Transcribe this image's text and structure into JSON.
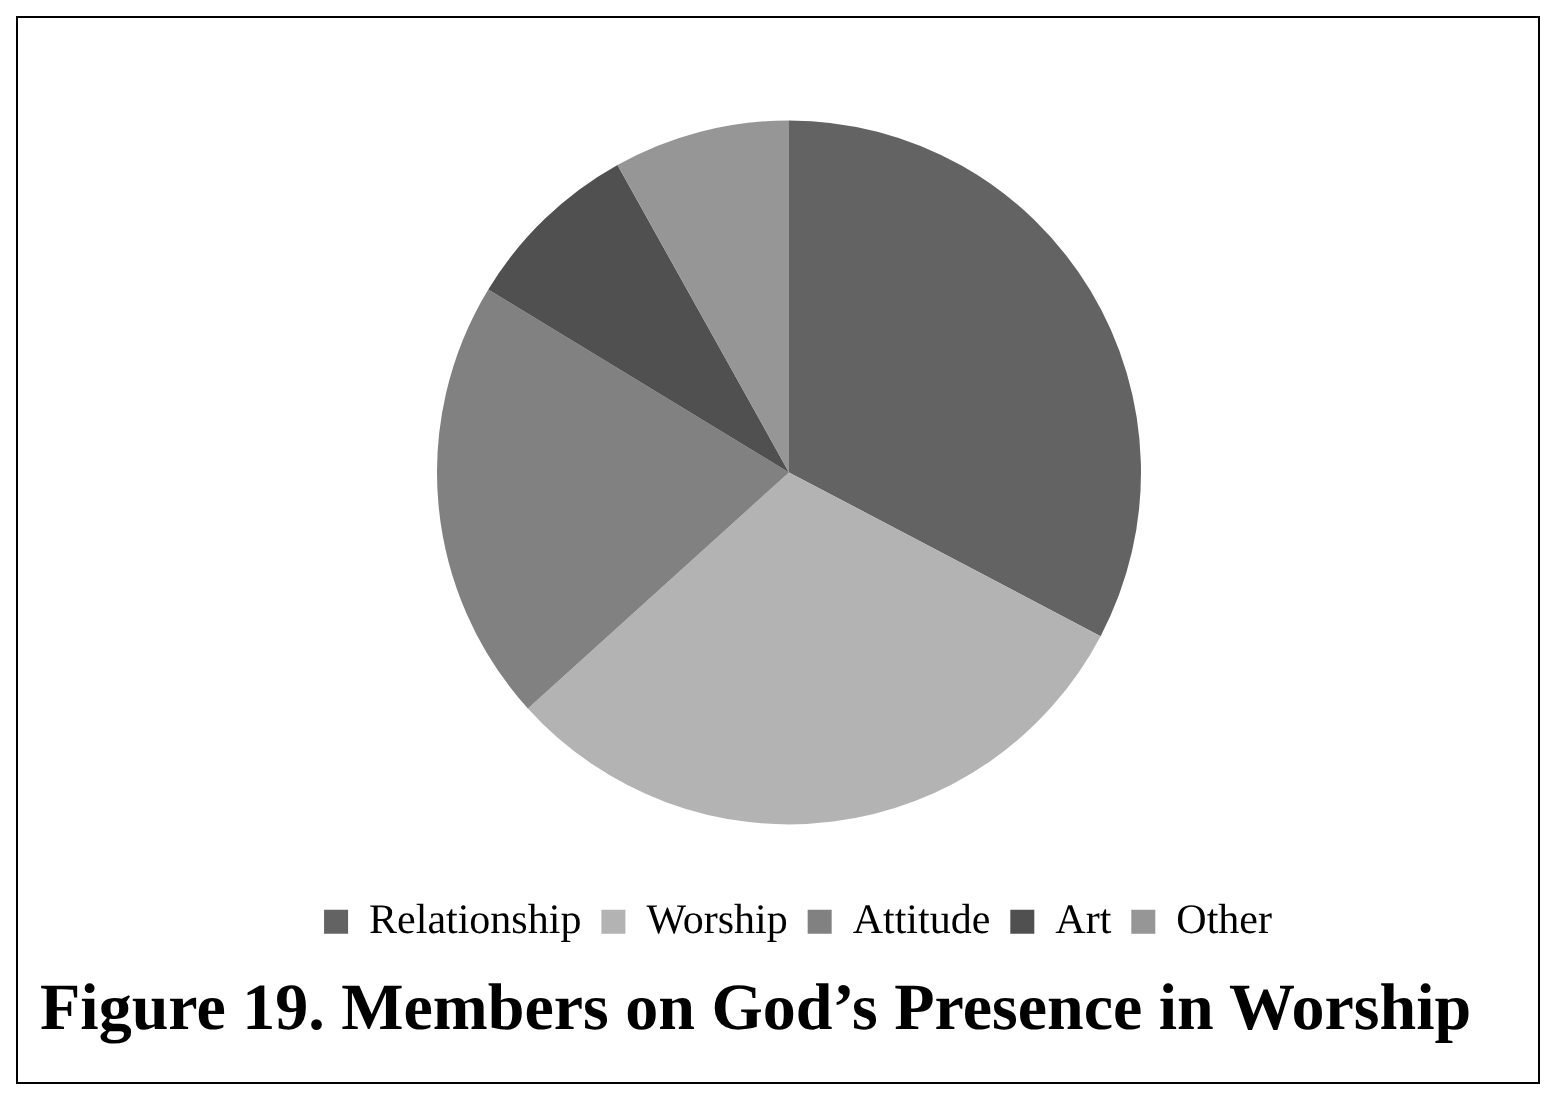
{
  "chart_data": {
    "type": "pie",
    "title": "Figure 19. Members on God’s Presence in Worship",
    "categories": [
      "Relationship",
      "Worship",
      "Attitude",
      "Art",
      "Other"
    ],
    "values": [
      32.7,
      30.6,
      20.4,
      8.2,
      8.1
    ],
    "colors": [
      "#636363",
      "#b3b3b3",
      "#818181",
      "#505050",
      "#969696"
    ],
    "legend": "bottom"
  }
}
